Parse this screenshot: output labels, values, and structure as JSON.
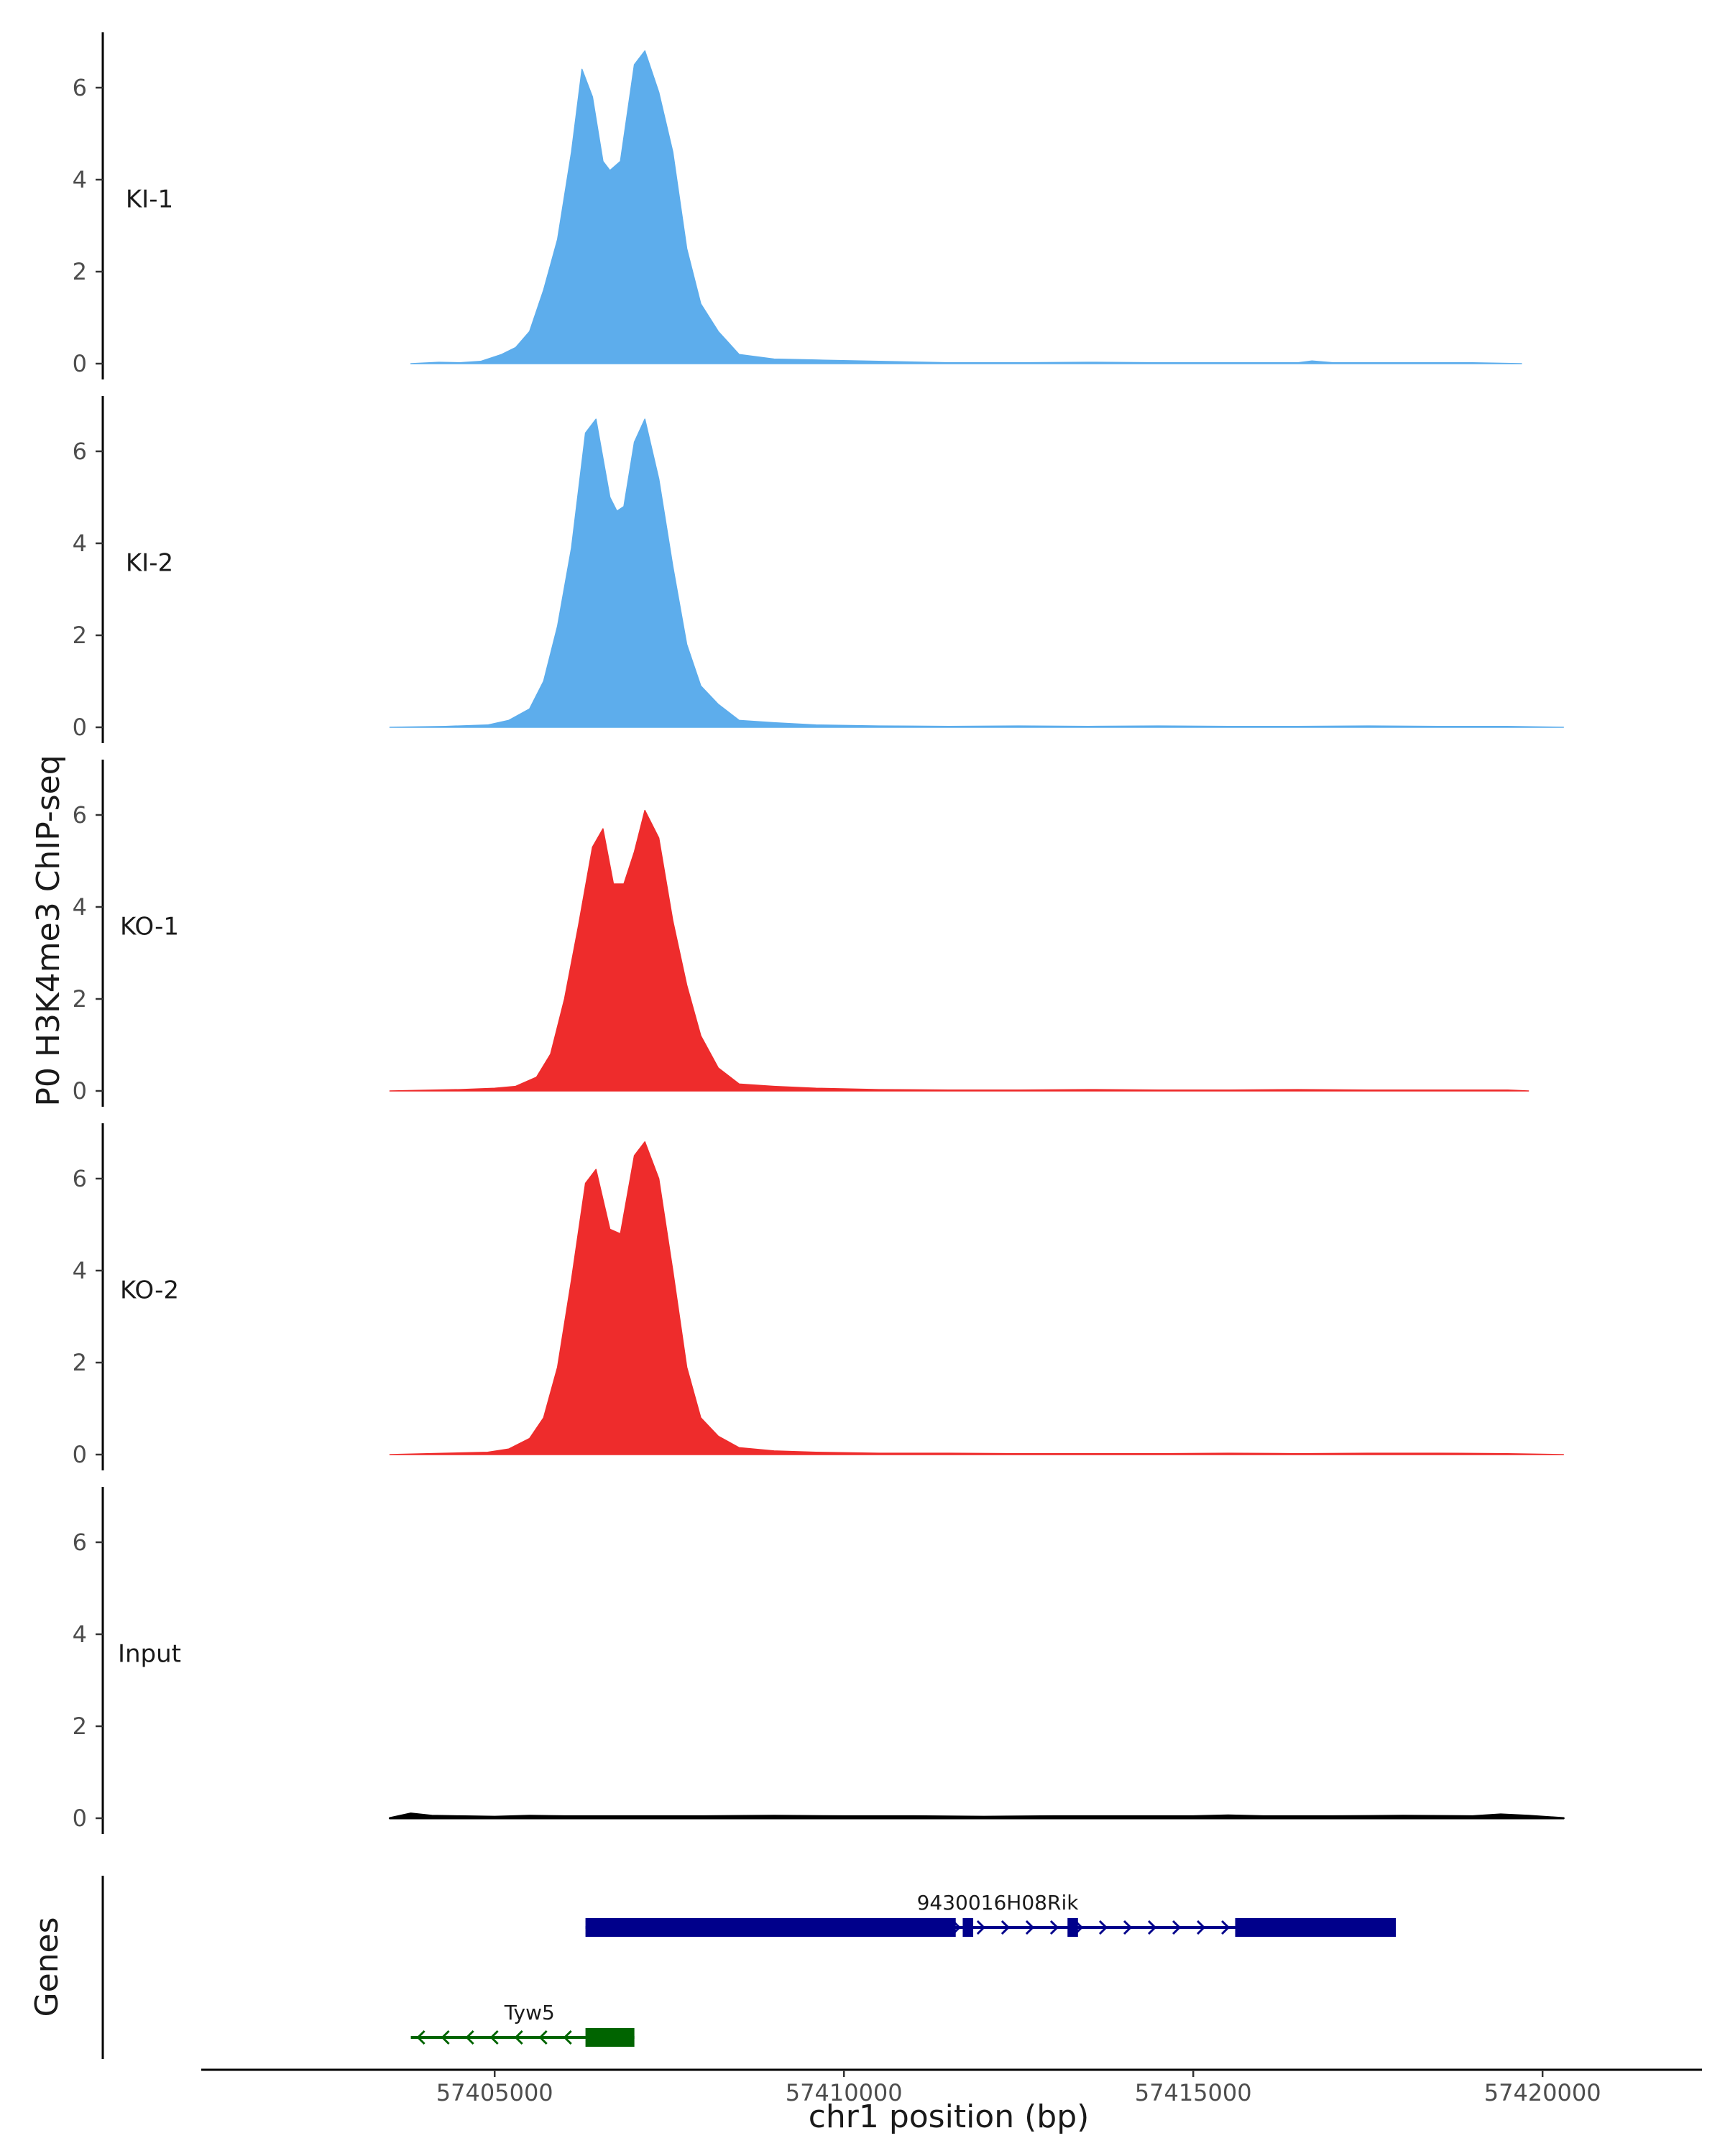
{
  "chart_data": {
    "type": "area",
    "ylabel": "P0 H3K4me3 ChIP-seq",
    "xlabel": "chr1 position (bp)",
    "xlim": [
      57400800,
      57422200
    ],
    "ylim": [
      0,
      7.1
    ],
    "y_ticks": [
      0,
      2,
      4,
      6
    ],
    "x_ticks": [
      57405000,
      57410000,
      57415000,
      57420000
    ],
    "x_tick_labels": [
      "57405000",
      "57410000",
      "57415000",
      "57420000"
    ],
    "series": [
      {
        "name": "KI-1",
        "color": "#5dadec",
        "x": [
          57403800,
          57404200,
          57404500,
          57404800,
          57405100,
          57405300,
          57405500,
          57405700,
          57405900,
          57406100,
          57406250,
          57406400,
          57406550,
          57406650,
          57406800,
          57407000,
          57407150,
          57407350,
          57407550,
          57407750,
          57407950,
          57408200,
          57408500,
          57409000,
          57409600,
          57410500,
          57411500,
          57412500,
          57413500,
          57414500,
          57415500,
          57416500,
          57416700,
          57417000,
          57418000,
          57419000,
          57419700
        ],
        "values": [
          0,
          0.03,
          0.02,
          0.05,
          0.2,
          0.35,
          0.7,
          1.6,
          2.7,
          4.6,
          6.4,
          5.8,
          4.4,
          4.2,
          4.4,
          6.5,
          6.8,
          5.9,
          4.6,
          2.5,
          1.3,
          0.7,
          0.2,
          0.1,
          0.08,
          0.05,
          0.02,
          0.02,
          0.03,
          0.02,
          0.02,
          0.02,
          0.06,
          0.02,
          0.02,
          0.02,
          0
        ]
      },
      {
        "name": "KI-2",
        "color": "#5dadec",
        "x": [
          57403500,
          57404300,
          57404900,
          57405200,
          57405500,
          57405700,
          57405900,
          57406100,
          57406300,
          57406450,
          57406650,
          57406750,
          57406850,
          57407000,
          57407150,
          57407350,
          57407550,
          57407750,
          57407950,
          57408200,
          57408500,
          57409000,
          57409600,
          57410500,
          57411500,
          57412500,
          57413500,
          57414500,
          57415500,
          57416500,
          57417500,
          57418500,
          57419500,
          57420300
        ],
        "values": [
          0,
          0.02,
          0.05,
          0.15,
          0.4,
          1.0,
          2.2,
          3.9,
          6.4,
          6.7,
          5.0,
          4.7,
          4.8,
          6.2,
          6.7,
          5.4,
          3.5,
          1.8,
          0.9,
          0.5,
          0.15,
          0.1,
          0.05,
          0.03,
          0.02,
          0.03,
          0.02,
          0.03,
          0.02,
          0.02,
          0.03,
          0.02,
          0.02,
          0
        ]
      },
      {
        "name": "KO-1",
        "color": "#ee2c2c",
        "x": [
          57403500,
          57404500,
          57405000,
          57405300,
          57405600,
          57405800,
          57406000,
          57406200,
          57406400,
          57406550,
          57406700,
          57406850,
          57407000,
          57407150,
          57407350,
          57407550,
          57407750,
          57407950,
          57408200,
          57408500,
          57409000,
          57409600,
          57410500,
          57411500,
          57412500,
          57413500,
          57414500,
          57415500,
          57416500,
          57417500,
          57418500,
          57419500,
          57419800
        ],
        "values": [
          0,
          0.03,
          0.06,
          0.1,
          0.3,
          0.8,
          2.0,
          3.6,
          5.3,
          5.7,
          4.5,
          4.5,
          5.2,
          6.1,
          5.5,
          3.7,
          2.3,
          1.2,
          0.5,
          0.15,
          0.1,
          0.06,
          0.03,
          0.02,
          0.02,
          0.03,
          0.02,
          0.02,
          0.03,
          0.02,
          0.02,
          0.02,
          0
        ]
      },
      {
        "name": "KO-2",
        "color": "#ee2c2c",
        "x": [
          57403500,
          57404300,
          57404900,
          57405200,
          57405500,
          57405700,
          57405900,
          57406100,
          57406300,
          57406450,
          57406650,
          57406800,
          57407000,
          57407150,
          57407350,
          57407550,
          57407750,
          57407950,
          57408200,
          57408500,
          57409000,
          57409600,
          57410500,
          57411500,
          57412500,
          57413500,
          57414500,
          57415500,
          57416500,
          57417500,
          57418500,
          57419500,
          57420300
        ],
        "values": [
          0,
          0.03,
          0.05,
          0.12,
          0.35,
          0.8,
          1.9,
          3.8,
          5.9,
          6.2,
          4.9,
          4.8,
          6.5,
          6.8,
          6.0,
          4.0,
          1.9,
          0.8,
          0.4,
          0.15,
          0.08,
          0.05,
          0.03,
          0.03,
          0.02,
          0.02,
          0.02,
          0.03,
          0.02,
          0.03,
          0.03,
          0.02,
          0
        ]
      },
      {
        "name": "Input",
        "color": "#000000",
        "x": [
          57403500,
          57403800,
          57404100,
          57404500,
          57405000,
          57405500,
          57406000,
          57407000,
          57408000,
          57409000,
          57410000,
          57411000,
          57412000,
          57413000,
          57414000,
          57415000,
          57415500,
          57416000,
          57417000,
          57418000,
          57419000,
          57419400,
          57419800,
          57420300
        ],
        "values": [
          0,
          0.1,
          0.05,
          0.04,
          0.03,
          0.05,
          0.04,
          0.04,
          0.04,
          0.05,
          0.04,
          0.04,
          0.03,
          0.04,
          0.04,
          0.04,
          0.06,
          0.04,
          0.04,
          0.05,
          0.04,
          0.08,
          0.05,
          0
        ]
      }
    ],
    "genes_track": {
      "label": "Genes",
      "genes": [
        {
          "name": "9430016H08Rik",
          "strand": "+",
          "color": "#00008b",
          "start": 57406300,
          "end": 57417900,
          "exons": [
            [
              57406300,
              57411600
            ],
            [
              57411700,
              57411850
            ],
            [
              57413200,
              57413350
            ],
            [
              57415600,
              57417900
            ]
          ]
        },
        {
          "name": "Tyw5",
          "strand": "-",
          "color": "#006400",
          "start": 57403800,
          "end": 57407000,
          "exons": [
            [
              57406300,
              57407000
            ]
          ]
        }
      ]
    }
  }
}
